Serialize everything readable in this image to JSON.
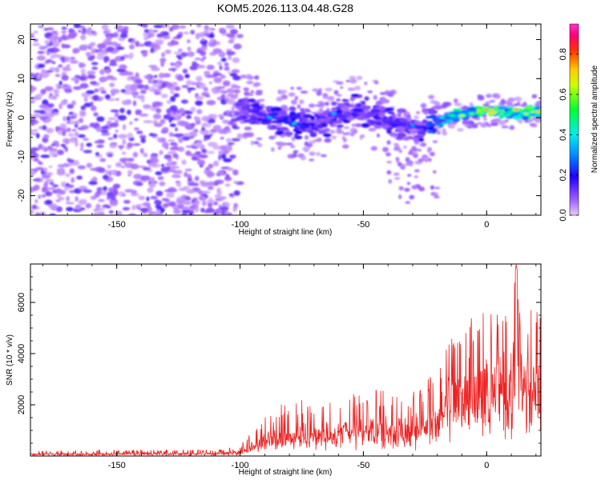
{
  "title": "KOM5.2026.113.04.48.G28",
  "chart_data": [
    {
      "type": "heatmap",
      "title": "KOM5.2026.113.04.48.G28",
      "xlabel": "Height of straight line (km)",
      "ylabel": "Frequency (Hz)",
      "xlim": [
        -185,
        22
      ],
      "ylim": [
        -25,
        24
      ],
      "xticks": [
        -150,
        -100,
        -50,
        0
      ],
      "xtick_labels": [
        "-150",
        "-100",
        "-50",
        "0"
      ],
      "yticks": [
        -20,
        -10,
        0,
        10,
        20
      ],
      "ytick_labels": [
        "-20",
        "-10",
        "0",
        "10",
        "20"
      ],
      "colorbar": {
        "label": "Normalized spectral amplitude",
        "range": [
          0,
          0.95
        ],
        "ticks": [
          0.0,
          0.2,
          0.4,
          0.6,
          0.8
        ],
        "tick_labels": [
          "0.0",
          "0.2",
          "0.4",
          "0.6",
          "0.8"
        ],
        "colormap": "rainbow (violet-blue-cyan-green-yellow-orange-red-magenta)"
      },
      "signal_track": {
        "description": "Doppler track of satellite signal",
        "x": [
          -100,
          -90,
          -80,
          -70,
          -60,
          -50,
          -40,
          -30,
          -20,
          -10,
          0,
          10,
          20
        ],
        "freq": [
          3,
          1,
          -1,
          -2,
          1,
          2,
          -1,
          -3,
          -1,
          1,
          2,
          1,
          1.5
        ],
        "amplitude": [
          0.15,
          0.2,
          0.25,
          0.2,
          0.2,
          0.2,
          0.18,
          0.15,
          0.35,
          0.55,
          0.7,
          0.6,
          0.65
        ]
      },
      "noise_region_x": [
        -185,
        -100
      ],
      "noise_amplitude": 0.08
    },
    {
      "type": "line",
      "xlabel": "Height of straight line (km)",
      "ylabel": "SNR (10 * v/v)",
      "xlim": [
        -185,
        22
      ],
      "ylim": [
        0,
        7500
      ],
      "xticks": [
        -150,
        -100,
        -50,
        0
      ],
      "xtick_labels": [
        "-150",
        "-100",
        "-50",
        "0"
      ],
      "yticks": [
        2000,
        4000,
        6000
      ],
      "ytick_labels": [
        "2000",
        "4000",
        "6000"
      ],
      "series": [
        {
          "name": "SNR",
          "color": "#ee2222",
          "envelope": {
            "x": [
              -185,
              -150,
              -110,
              -100,
              -95,
              -85,
              -75,
              -60,
              -50,
              -40,
              -30,
              -25,
              -20,
              -15,
              -10,
              -5,
              0,
              5,
              10,
              12,
              15,
              20,
              22
            ],
            "base": [
              50,
              50,
              60,
              100,
              300,
              500,
              550,
              600,
              650,
              700,
              800,
              900,
              1400,
              2000,
              2300,
              2500,
              2600,
              2700,
              2800,
              3000,
              3000,
              3200,
              3300
            ],
            "peak": [
              200,
              250,
              250,
              400,
              1100,
              2000,
              2200,
              2300,
              2600,
              2600,
              2600,
              2800,
              3600,
              4700,
              5400,
              5400,
              5700,
              5600,
              6000,
              7500,
              5500,
              6000,
              5800
            ]
          }
        }
      ]
    }
  ]
}
